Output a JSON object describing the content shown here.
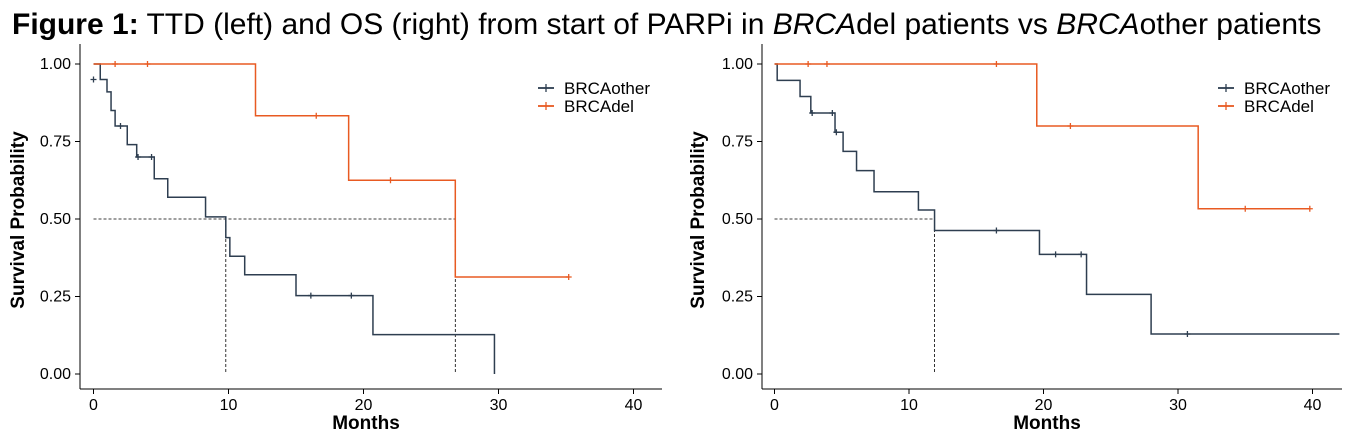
{
  "figure": {
    "title_prefix": "Figure 1:",
    "title_part1": " TTD (left) and OS (right) from start of PARPi in ",
    "title_italic1": "BRCA",
    "title_part2": "del patients vs ",
    "title_italic2": "BRCA",
    "title_part3": "other patients"
  },
  "colors": {
    "BRCAother": "#2e3e50",
    "BRCAdel": "#e85a22"
  },
  "chart_data": [
    {
      "type": "line",
      "subtype": "kaplan-meier",
      "xlabel": "Months",
      "ylabel": "Survival Probability",
      "xlim": [
        -1,
        42
      ],
      "ylim": [
        0,
        1
      ],
      "xticks": [
        "0",
        "10",
        "20",
        "30",
        "40"
      ],
      "yticks": [
        "0.00",
        "0.25",
        "0.50",
        "0.75",
        "1.00"
      ],
      "legend": [
        "BRCAother",
        "BRCAdel"
      ],
      "legend_position": "top-right",
      "median_line_y": 0.5,
      "medians": [
        9.8,
        26.8
      ],
      "series": [
        {
          "name": "BRCAother",
          "steps": [
            [
              0,
              1.0
            ],
            [
              0.5,
              0.95
            ],
            [
              1.0,
              0.91
            ],
            [
              1.3,
              0.85
            ],
            [
              1.6,
              0.8
            ],
            [
              2.5,
              0.74
            ],
            [
              3.2,
              0.7
            ],
            [
              4.5,
              0.63
            ],
            [
              5.5,
              0.57
            ],
            [
              8.3,
              0.507
            ],
            [
              9.8,
              0.44
            ],
            [
              10.1,
              0.38
            ],
            [
              11.2,
              0.32
            ],
            [
              15.0,
              0.253
            ],
            [
              20.7,
              0.127
            ],
            [
              29.7,
              0.0
            ]
          ],
          "end": 29.7,
          "censors": [
            [
              0.0,
              0.95
            ],
            [
              2.0,
              0.8
            ],
            [
              3.3,
              0.7
            ],
            [
              4.3,
              0.7
            ],
            [
              16.1,
              0.253
            ],
            [
              19.1,
              0.253
            ]
          ]
        },
        {
          "name": "BRCAdel",
          "steps": [
            [
              0,
              1.0
            ],
            [
              12.0,
              0.833
            ],
            [
              18.9,
              0.625
            ],
            [
              26.8,
              0.313
            ]
          ],
          "end": 35.2,
          "censors": [
            [
              1.6,
              1.0
            ],
            [
              4.0,
              1.0
            ],
            [
              16.5,
              0.833
            ],
            [
              22.0,
              0.625
            ],
            [
              35.2,
              0.313
            ]
          ]
        }
      ]
    },
    {
      "type": "line",
      "subtype": "kaplan-meier",
      "xlabel": "Months",
      "ylabel": "Survival Probability",
      "xlim": [
        -1,
        42
      ],
      "ylim": [
        0,
        1
      ],
      "xticks": [
        "0",
        "10",
        "20",
        "30",
        "40"
      ],
      "yticks": [
        "0.00",
        "0.25",
        "0.50",
        "0.75",
        "1.00"
      ],
      "legend": [
        "BRCAother",
        "BRCAdel"
      ],
      "legend_position": "top-right",
      "median_line_y": 0.5,
      "medians": [
        11.9
      ],
      "series": [
        {
          "name": "BRCAother",
          "steps": [
            [
              0,
              1.0
            ],
            [
              0.2,
              0.947
            ],
            [
              1.9,
              0.895
            ],
            [
              2.7,
              0.842
            ],
            [
              4.5,
              0.78
            ],
            [
              5.1,
              0.718
            ],
            [
              6.1,
              0.656
            ],
            [
              7.4,
              0.588
            ],
            [
              10.7,
              0.529
            ],
            [
              11.9,
              0.463
            ],
            [
              19.7,
              0.386
            ],
            [
              23.2,
              0.257
            ],
            [
              28.0,
              0.129
            ]
          ],
          "end": 42,
          "censors": [
            [
              2.8,
              0.842
            ],
            [
              4.3,
              0.842
            ],
            [
              4.6,
              0.78
            ],
            [
              16.5,
              0.463
            ],
            [
              20.9,
              0.386
            ],
            [
              22.8,
              0.386
            ],
            [
              30.7,
              0.129
            ]
          ]
        },
        {
          "name": "BRCAdel",
          "steps": [
            [
              0,
              1.0
            ],
            [
              19.5,
              0.8
            ],
            [
              31.5,
              0.533
            ]
          ],
          "end": 39.8,
          "censors": [
            [
              2.5,
              1.0
            ],
            [
              3.9,
              1.0
            ],
            [
              16.5,
              1.0
            ],
            [
              22.0,
              0.8
            ],
            [
              35.0,
              0.533
            ],
            [
              39.8,
              0.533
            ]
          ]
        }
      ]
    }
  ]
}
